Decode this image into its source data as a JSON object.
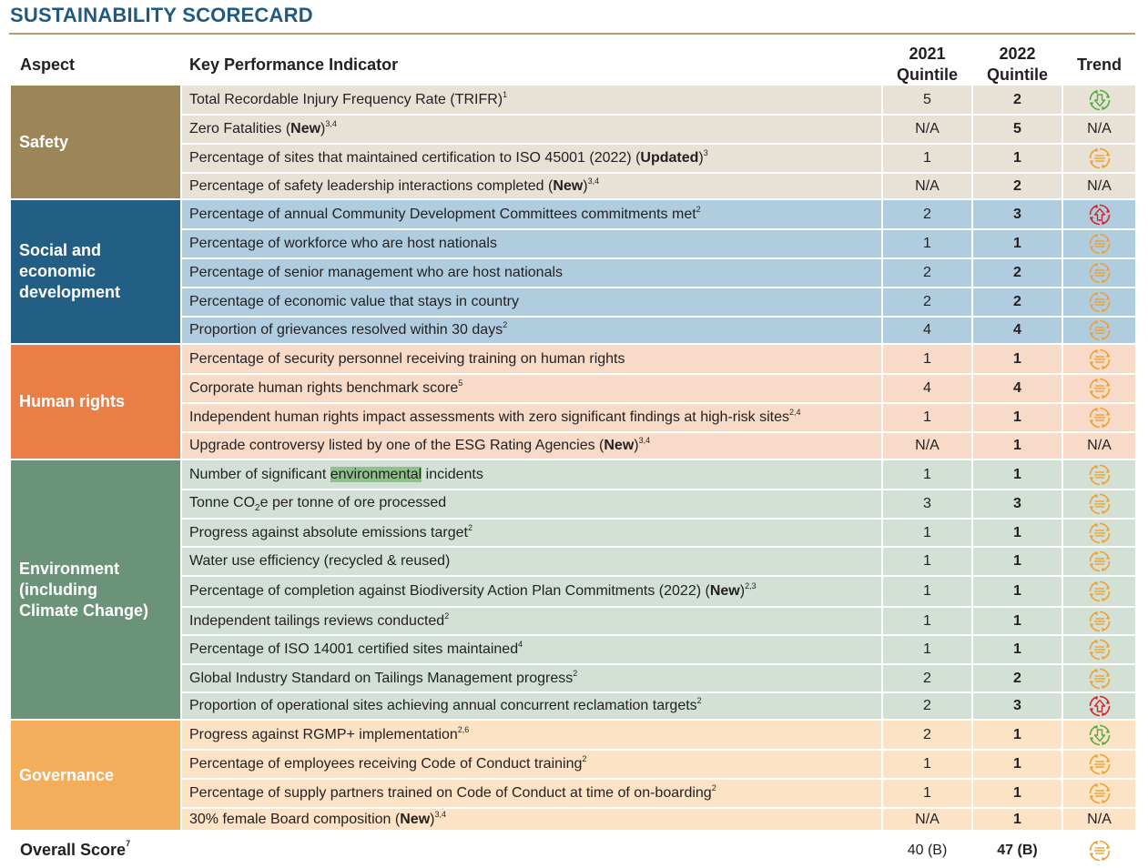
{
  "title": "SUSTAINABILITY SCORECARD",
  "headers": {
    "aspect": "Aspect",
    "kpi": "Key Performance Indicator",
    "q2021_line1": "2021",
    "q2021_line2": "Quintile",
    "q2022_line1": "2022",
    "q2022_line2": "Quintile",
    "trend": "Trend"
  },
  "trend_icons": {
    "down": {
      "name": "trend-down-arrow-icon",
      "color": "#5aa846"
    },
    "up": {
      "name": "trend-up-arrow-icon",
      "color": "#d8232a"
    },
    "flat": {
      "name": "trend-flat-lines-icon",
      "color": "#f0a030"
    }
  },
  "groups": [
    {
      "aspect": "Safety",
      "color": "#9c8658",
      "row_bg": "#e8e2d6",
      "rows": [
        {
          "parts": [
            {
              "t": "Total Recordable Injury Frequency Rate (TRIFR)"
            },
            {
              "t": "1",
              "sup": true
            }
          ],
          "q2021": "5",
          "q2022": "2",
          "trend": "down",
          "h": 31
        },
        {
          "parts": [
            {
              "t": "Zero Fatalities ("
            },
            {
              "t": "New",
              "b": true
            },
            {
              "t": ")"
            },
            {
              "t": "3,4",
              "sup": true
            }
          ],
          "q2021": "N/A",
          "q2022": "5",
          "trend": "N/A",
          "h": 32
        },
        {
          "parts": [
            {
              "t": "Percentage of sites that maintained certification to ISO 45001 (2022) ("
            },
            {
              "t": "Updated",
              "b": true
            },
            {
              "t": ")"
            },
            {
              "t": "3",
              "sup": true
            }
          ],
          "q2021": "1",
          "q2022": "1",
          "trend": "flat",
          "h": 32
        },
        {
          "parts": [
            {
              "t": "Percentage of safety leadership interactions completed ("
            },
            {
              "t": "New",
              "b": true
            },
            {
              "t": ")"
            },
            {
              "t": "3,4",
              "sup": true
            }
          ],
          "q2021": "N/A",
          "q2022": "2",
          "trend": "N/A",
          "h": 29
        }
      ]
    },
    {
      "aspect": "Social and\neconomic\ndevelopment",
      "color": "#235f85",
      "row_bg": "#b0cde0",
      "rows": [
        {
          "parts": [
            {
              "t": "Percentage of annual Community Development Committees commitments met"
            },
            {
              "t": "2",
              "sup": true
            }
          ],
          "q2021": "2",
          "q2022": "3",
          "trend": "up",
          "h": 31
        },
        {
          "parts": [
            {
              "t": "Percentage of workforce who are host nationals"
            }
          ],
          "q2021": "1",
          "q2022": "1",
          "trend": "flat",
          "h": 32
        },
        {
          "parts": [
            {
              "t": "Percentage of senior management who are host nationals"
            }
          ],
          "q2021": "2",
          "q2022": "2",
          "trend": "flat",
          "h": 32
        },
        {
          "parts": [
            {
              "t": "Percentage of economic value that stays in country"
            }
          ],
          "q2021": "2",
          "q2022": "2",
          "trend": "flat",
          "h": 32
        },
        {
          "parts": [
            {
              "t": "Proportion of grievances resolved within 30 days"
            },
            {
              "t": "2",
              "sup": true
            }
          ],
          "q2021": "4",
          "q2022": "4",
          "trend": "flat",
          "h": 30
        }
      ]
    },
    {
      "aspect": "Human rights",
      "color": "#e97e47",
      "row_bg": "#f7dac8",
      "rows": [
        {
          "parts": [
            {
              "t": "Percentage of security personnel receiving training on human rights"
            }
          ],
          "q2021": "1",
          "q2022": "1",
          "trend": "flat",
          "h": 31
        },
        {
          "parts": [
            {
              "t": "Corporate human rights benchmark score"
            },
            {
              "t": "5",
              "sup": true
            }
          ],
          "q2021": "4",
          "q2022": "4",
          "trend": "flat",
          "h": 32
        },
        {
          "parts": [
            {
              "t": "Independent human rights impact assessments with zero significant findings at high-risk sites"
            },
            {
              "t": "2,4",
              "sup": true
            }
          ],
          "q2021": "1",
          "q2022": "1",
          "trend": "flat",
          "h": 32
        },
        {
          "parts": [
            {
              "t": "Upgrade controversy listed by one of the ESG Rating Agencies ("
            },
            {
              "t": "New",
              "b": true
            },
            {
              "t": ")"
            },
            {
              "t": "3,4",
              "sup": true
            }
          ],
          "q2021": "N/A",
          "q2022": "1",
          "trend": "N/A",
          "h": 30
        }
      ]
    },
    {
      "aspect": "Environment\n(including\nClimate Change)",
      "color": "#6a937a",
      "row_bg": "#d2e0d5",
      "rows": [
        {
          "parts": [
            {
              "t": "Number of significant "
            },
            {
              "t": "environmental",
              "hl": true
            },
            {
              "t": " incidents"
            }
          ],
          "q2021": "1",
          "q2022": "1",
          "trend": "flat",
          "h": 31
        },
        {
          "parts": [
            {
              "t": "Tonne CO"
            },
            {
              "t": "2",
              "sub": true
            },
            {
              "t": "e per tonne of ore processed"
            }
          ],
          "q2021": "3",
          "q2022": "3",
          "trend": "flat",
          "h": 32
        },
        {
          "parts": [
            {
              "t": "Progress against absolute emissions target"
            },
            {
              "t": "2",
              "sup": true
            }
          ],
          "q2021": "1",
          "q2022": "1",
          "trend": "flat",
          "h": 31
        },
        {
          "parts": [
            {
              "t": "Water use efficiency (recycled & reused)"
            }
          ],
          "q2021": "1",
          "q2022": "1",
          "trend": "flat",
          "h": 32
        },
        {
          "parts": [
            {
              "t": "Percentage of completion against Biodiversity Action Plan Commitments (2022) ("
            },
            {
              "t": "New",
              "b": true
            },
            {
              "t": ")"
            },
            {
              "t": "2,3",
              "sup": true
            }
          ],
          "q2021": "1",
          "q2022": "1",
          "trend": "flat",
          "h": 34
        },
        {
          "parts": [
            {
              "t": "Independent tailings reviews conducted"
            },
            {
              "t": "2",
              "sup": true
            }
          ],
          "q2021": "1",
          "q2022": "1",
          "trend": "flat",
          "h": 31
        },
        {
          "parts": [
            {
              "t": "Percentage of ISO 14001 certified sites maintained"
            },
            {
              "t": "4",
              "sup": true
            }
          ],
          "q2021": "1",
          "q2022": "1",
          "trend": "flat",
          "h": 32
        },
        {
          "parts": [
            {
              "t": "Global Industry Standard on Tailings Management progress"
            },
            {
              "t": "2",
              "sup": true
            }
          ],
          "q2021": "2",
          "q2022": "2",
          "trend": "flat",
          "h": 31
        },
        {
          "parts": [
            {
              "t": "Proportion of operational sites achieving annual concurrent reclamation targets"
            },
            {
              "t": "2",
              "sup": true
            }
          ],
          "q2021": "2",
          "q2022": "3",
          "trend": "up",
          "h": 30
        }
      ]
    },
    {
      "aspect": "Governance",
      "color": "#f3ad5b",
      "row_bg": "#fce3c6",
      "rows": [
        {
          "parts": [
            {
              "t": "Progress against RGMP+ implementation"
            },
            {
              "t": "2,6",
              "sup": true
            }
          ],
          "q2021": "2",
          "q2022": "1",
          "trend": "down",
          "h": 31
        },
        {
          "parts": [
            {
              "t": "Percentage of employees receiving Code of Conduct training"
            },
            {
              "t": "2",
              "sup": true
            }
          ],
          "q2021": "1",
          "q2022": "1",
          "trend": "flat",
          "h": 32
        },
        {
          "parts": [
            {
              "t": "Percentage of supply partners trained on Code of Conduct at time of on-boarding"
            },
            {
              "t": "2",
              "sup": true
            }
          ],
          "q2021": "1",
          "q2022": "1",
          "trend": "flat",
          "h": 32
        },
        {
          "parts": [
            {
              "t": "30% female Board composition ("
            },
            {
              "t": "New",
              "b": true
            },
            {
              "t": ")"
            },
            {
              "t": "3,4",
              "sup": true
            }
          ],
          "q2021": "N/A",
          "q2022": "1",
          "trend": "N/A",
          "h": 25
        }
      ]
    }
  ],
  "overall": {
    "label": "Overall Score",
    "label_sup": "7",
    "q2021": "40 (B)",
    "q2022": "47 (B)",
    "trend": "flat"
  }
}
